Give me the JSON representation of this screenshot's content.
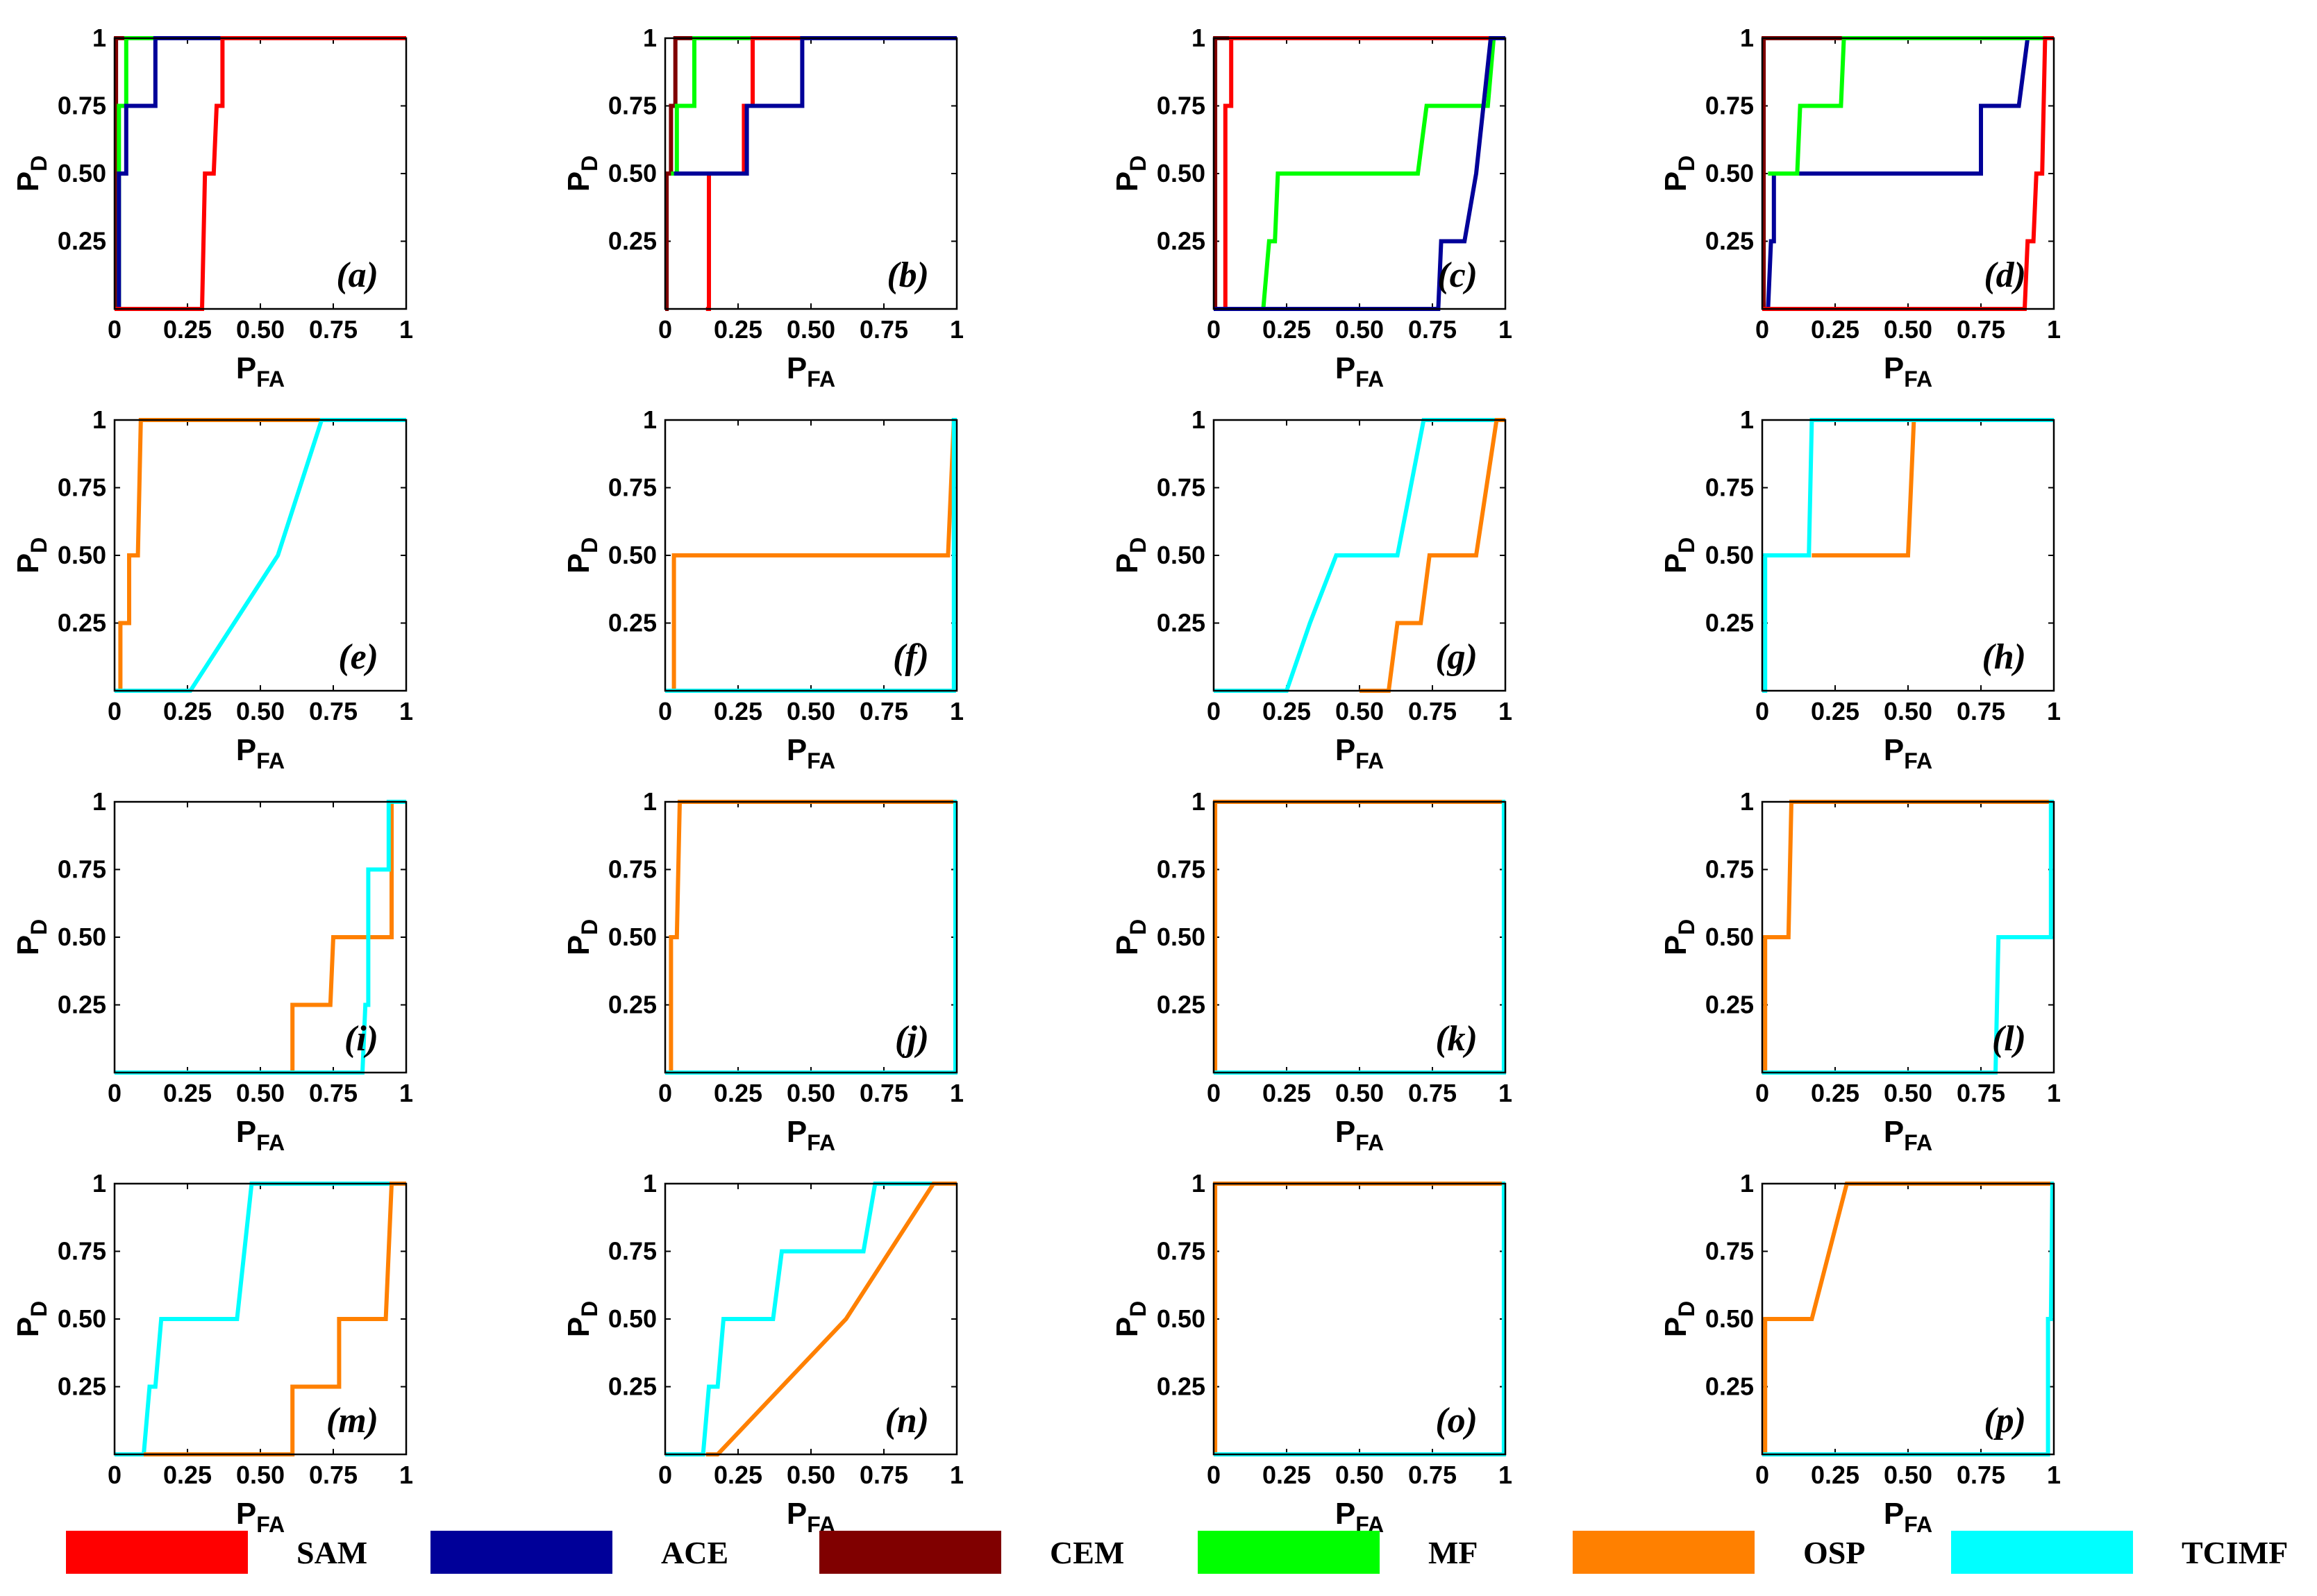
{
  "figure": {
    "x_label": "P",
    "x_label_sub": "FA",
    "y_label": "P",
    "y_label_sub": "D",
    "x_ticks": [
      "0",
      "0.25",
      "0.50",
      "0.75",
      "1"
    ],
    "y_ticks": [
      "0.25",
      "0.50",
      "0.75",
      "1"
    ]
  },
  "legend": [
    {
      "name": "SAM",
      "color": "#ff0000"
    },
    {
      "name": "ACE",
      "color": "#000099"
    },
    {
      "name": "CEM",
      "color": "#800000"
    },
    {
      "name": "MF",
      "color": "#00ff00"
    },
    {
      "name": "OSP",
      "color": "#ff8000"
    },
    {
      "name": "TCIMF",
      "color": "#00ffff"
    }
  ],
  "chart_data": [
    {
      "type": "line",
      "panel": "(a)",
      "xlim": [
        0,
        1
      ],
      "ylim": [
        0,
        1
      ],
      "series": [
        {
          "name": "CEM",
          "color": "#800000",
          "x": [
            0,
            0.005,
            0.005,
            1
          ],
          "y": [
            0,
            0,
            1,
            1
          ]
        },
        {
          "name": "MF",
          "color": "#00ff00",
          "x": [
            0.01,
            0.015,
            0.015,
            0.04,
            0.04,
            1
          ],
          "y": [
            0,
            0,
            0.75,
            0.75,
            1,
            1
          ]
        },
        {
          "name": "ACE",
          "color": "#000099",
          "x": [
            0,
            0.015,
            0.015,
            0.04,
            0.04,
            0.14,
            0.14,
            1
          ],
          "y": [
            0,
            0,
            0.5,
            0.5,
            0.75,
            0.75,
            1,
            1
          ]
        },
        {
          "name": "SAM",
          "color": "#ff0000",
          "x": [
            0,
            0.3,
            0.31,
            0.34,
            0.35,
            0.37,
            0.37,
            1
          ],
          "y": [
            0,
            0,
            0.5,
            0.5,
            0.75,
            0.75,
            1,
            1
          ]
        }
      ]
    },
    {
      "type": "line",
      "panel": "(b)",
      "xlim": [
        0,
        1
      ],
      "ylim": [
        0,
        1
      ],
      "series": [
        {
          "name": "CEM",
          "color": "#800000",
          "x": [
            0,
            0.005,
            0.005,
            0.02,
            0.02,
            0.035,
            0.035,
            1
          ],
          "y": [
            0,
            0,
            0.5,
            0.5,
            0.75,
            0.75,
            1,
            1
          ]
        },
        {
          "name": "MF",
          "color": "#00ff00",
          "x": [
            0.02,
            0.04,
            0.04,
            0.07,
            0.07,
            0.1,
            0.1,
            1
          ],
          "y": [
            0.5,
            0.5,
            0.75,
            0.75,
            0.75,
            0.75,
            1,
            1
          ]
        },
        {
          "name": "SAM",
          "color": "#ff0000",
          "x": [
            0.14,
            0.15,
            0.15,
            0.27,
            0.27,
            0.3,
            0.3,
            1
          ],
          "y": [
            0,
            0,
            0.5,
            0.5,
            0.75,
            0.75,
            1,
            1
          ]
        },
        {
          "name": "ACE",
          "color": "#000099",
          "x": [
            0.03,
            0.28,
            0.28,
            0.47,
            0.47,
            1
          ],
          "y": [
            0.5,
            0.5,
            0.75,
            0.75,
            1,
            1
          ]
        }
      ]
    },
    {
      "type": "line",
      "panel": "(c)",
      "xlim": [
        0,
        1
      ],
      "ylim": [
        0,
        1
      ],
      "series": [
        {
          "name": "CEM",
          "color": "#800000",
          "x": [
            0,
            0.005,
            0.005,
            1
          ],
          "y": [
            0,
            0,
            1,
            1
          ]
        },
        {
          "name": "SAM",
          "color": "#ff0000",
          "x": [
            0,
            0.04,
            0.04,
            0.05,
            0.06,
            0.06,
            1
          ],
          "y": [
            0,
            0,
            0.75,
            0.75,
            0.75,
            1,
            1
          ]
        },
        {
          "name": "MF",
          "color": "#00ff00",
          "x": [
            0,
            0.17,
            0.19,
            0.21,
            0.22,
            0.24,
            0.7,
            0.73,
            0.94,
            0.96
          ],
          "y": [
            0,
            0,
            0.25,
            0.25,
            0.5,
            0.5,
            0.5,
            0.75,
            0.75,
            1
          ]
        },
        {
          "name": "ACE",
          "color": "#000099",
          "x": [
            0,
            0.77,
            0.78,
            0.85,
            0.86,
            0.9,
            0.95,
            1
          ],
          "y": [
            0,
            0,
            0.25,
            0.25,
            0.25,
            0.5,
            1,
            1
          ]
        }
      ]
    },
    {
      "type": "line",
      "panel": "(d)",
      "xlim": [
        0,
        1
      ],
      "ylim": [
        0,
        1
      ],
      "series": [
        {
          "name": "CEM",
          "color": "#800000",
          "x": [
            0,
            0.005,
            0.005,
            1
          ],
          "y": [
            0,
            0,
            1,
            1
          ]
        },
        {
          "name": "ACE",
          "color": "#000099",
          "x": [
            0,
            0.02,
            0.03,
            0.04,
            0.04,
            0.75,
            0.75,
            0.88,
            0.91,
            1
          ],
          "y": [
            0,
            0,
            0.25,
            0.25,
            0.5,
            0.5,
            0.75,
            0.75,
            1,
            1
          ]
        },
        {
          "name": "MF",
          "color": "#00ff00",
          "x": [
            0.02,
            0.03,
            0.03,
            0.12,
            0.13,
            0.27,
            0.28,
            1
          ],
          "y": [
            0.5,
            0.5,
            0.5,
            0.5,
            0.75,
            0.75,
            1,
            1
          ]
        },
        {
          "name": "SAM",
          "color": "#ff0000",
          "x": [
            0,
            0.9,
            0.91,
            0.93,
            0.94,
            0.96,
            0.97,
            1
          ],
          "y": [
            0,
            0,
            0.25,
            0.25,
            0.5,
            0.5,
            1,
            1
          ]
        }
      ]
    },
    {
      "type": "line",
      "panel": "(e)",
      "xlim": [
        0,
        1
      ],
      "ylim": [
        0,
        1
      ],
      "series": [
        {
          "name": "OSP",
          "color": "#ff8000",
          "x": [
            0.01,
            0.02,
            0.02,
            0.05,
            0.05,
            0.08,
            0.09,
            1
          ],
          "y": [
            0,
            0,
            0.25,
            0.25,
            0.5,
            0.5,
            1,
            1
          ]
        },
        {
          "name": "TCIMF",
          "color": "#00ffff",
          "x": [
            0,
            0.26,
            0.56,
            0.71,
            1
          ],
          "y": [
            0,
            0,
            0.5,
            1,
            1
          ]
        }
      ]
    },
    {
      "type": "line",
      "panel": "(f)",
      "xlim": [
        0,
        1
      ],
      "ylim": [
        0,
        1
      ],
      "series": [
        {
          "name": "OSP",
          "color": "#ff8000",
          "x": [
            0.02,
            0.03,
            0.03,
            0.97,
            0.98,
            0.98,
            0.99,
            1
          ],
          "y": [
            0,
            0,
            0.5,
            0.5,
            0.75,
            0.75,
            1,
            1
          ]
        },
        {
          "name": "TCIMF",
          "color": "#00ffff",
          "x": [
            0,
            0.99,
            0.99,
            1
          ],
          "y": [
            0,
            0,
            1,
            1
          ]
        }
      ]
    },
    {
      "type": "line",
      "panel": "(g)",
      "xlim": [
        0,
        1
      ],
      "ylim": [
        0,
        1
      ],
      "series": [
        {
          "name": "TCIMF",
          "color": "#00ffff",
          "x": [
            0,
            0.25,
            0.33,
            0.42,
            0.63,
            0.72,
            1
          ],
          "y": [
            0,
            0,
            0.25,
            0.5,
            0.5,
            1,
            1
          ]
        },
        {
          "name": "OSP",
          "color": "#ff8000",
          "x": [
            0.5,
            0.6,
            0.63,
            0.71,
            0.74,
            0.9,
            0.97,
            1
          ],
          "y": [
            0,
            0,
            0.25,
            0.25,
            0.5,
            0.5,
            1,
            1
          ]
        }
      ]
    },
    {
      "type": "line",
      "panel": "(h)",
      "xlim": [
        0,
        1
      ],
      "ylim": [
        0,
        1
      ],
      "series": [
        {
          "name": "OSP",
          "color": "#ff8000",
          "x": [
            0.17,
            0.5,
            0.52,
            1
          ],
          "y": [
            0.5,
            0.5,
            1,
            1
          ]
        },
        {
          "name": "TCIMF",
          "color": "#00ffff",
          "x": [
            0,
            0.01,
            0.01,
            0.16,
            0.17,
            1
          ],
          "y": [
            0,
            0,
            0.5,
            0.5,
            1,
            1
          ]
        }
      ]
    },
    {
      "type": "line",
      "panel": "(i)",
      "xlim": [
        0,
        1
      ],
      "ylim": [
        0,
        1
      ],
      "series": [
        {
          "name": "OSP",
          "color": "#ff8000",
          "x": [
            0.6,
            0.61,
            0.61,
            0.74,
            0.75,
            0.95,
            0.95,
            1
          ],
          "y": [
            0,
            0,
            0.25,
            0.25,
            0.5,
            0.5,
            1,
            1
          ]
        },
        {
          "name": "TCIMF",
          "color": "#00ffff",
          "x": [
            0,
            0.85,
            0.86,
            0.87,
            0.87,
            0.94,
            0.94,
            1
          ],
          "y": [
            0,
            0,
            0.25,
            0.25,
            0.75,
            0.75,
            1,
            1
          ]
        }
      ]
    },
    {
      "type": "line",
      "panel": "(j)",
      "xlim": [
        0,
        1
      ],
      "ylim": [
        0,
        1
      ],
      "series": [
        {
          "name": "OSP",
          "color": "#ff8000",
          "x": [
            0.01,
            0.02,
            0.02,
            0.04,
            0.05,
            1
          ],
          "y": [
            0,
            0,
            0.5,
            0.5,
            1,
            1
          ]
        },
        {
          "name": "TCIMF",
          "color": "#00ffff",
          "x": [
            0,
            0.995,
            0.995,
            1
          ],
          "y": [
            0,
            0,
            1,
            1
          ]
        }
      ]
    },
    {
      "type": "line",
      "panel": "(k)",
      "xlim": [
        0,
        1
      ],
      "ylim": [
        0,
        1
      ],
      "series": [
        {
          "name": "OSP",
          "color": "#ff8000",
          "x": [
            0,
            0.005,
            0.005,
            1
          ],
          "y": [
            0,
            0,
            1,
            1
          ]
        },
        {
          "name": "TCIMF",
          "color": "#00ffff",
          "x": [
            0,
            0.995,
            0.995,
            1
          ],
          "y": [
            0,
            0,
            1,
            1
          ]
        }
      ]
    },
    {
      "type": "line",
      "panel": "(l)",
      "xlim": [
        0,
        1
      ],
      "ylim": [
        0,
        1
      ],
      "series": [
        {
          "name": "OSP",
          "color": "#ff8000",
          "x": [
            0,
            0.01,
            0.01,
            0.09,
            0.1,
            1
          ],
          "y": [
            0,
            0,
            0.5,
            0.5,
            1,
            1
          ]
        },
        {
          "name": "TCIMF",
          "color": "#00ffff",
          "x": [
            0,
            0.8,
            0.81,
            0.99,
            0.99,
            1
          ],
          "y": [
            0,
            0,
            0.5,
            0.5,
            1,
            1
          ]
        }
      ]
    },
    {
      "type": "line",
      "panel": "(m)",
      "xlim": [
        0,
        1
      ],
      "ylim": [
        0,
        1
      ],
      "series": [
        {
          "name": "TCIMF",
          "color": "#00ffff",
          "x": [
            0,
            0.1,
            0.12,
            0.14,
            0.16,
            0.42,
            0.47,
            1
          ],
          "y": [
            0,
            0,
            0.25,
            0.25,
            0.5,
            0.5,
            1,
            1
          ]
        },
        {
          "name": "OSP",
          "color": "#ff8000",
          "x": [
            0.1,
            0.61,
            0.61,
            0.77,
            0.77,
            0.93,
            0.94,
            0.95,
            1
          ],
          "y": [
            0,
            0,
            0.25,
            0.25,
            0.5,
            0.5,
            0.75,
            1,
            1
          ]
        }
      ]
    },
    {
      "type": "line",
      "panel": "(n)",
      "xlim": [
        0,
        1
      ],
      "ylim": [
        0,
        1
      ],
      "series": [
        {
          "name": "TCIMF",
          "color": "#00ffff",
          "x": [
            0,
            0.13,
            0.15,
            0.18,
            0.2,
            0.37,
            0.4,
            0.68,
            0.72,
            1
          ],
          "y": [
            0,
            0,
            0.25,
            0.25,
            0.5,
            0.5,
            0.75,
            0.75,
            1,
            1
          ]
        },
        {
          "name": "OSP",
          "color": "#ff8000",
          "x": [
            0.14,
            0.18,
            0.62,
            0.92,
            1
          ],
          "y": [
            0,
            0,
            0.5,
            1,
            1
          ]
        }
      ]
    },
    {
      "type": "line",
      "panel": "(o)",
      "xlim": [
        0,
        1
      ],
      "ylim": [
        0,
        1
      ],
      "series": [
        {
          "name": "OSP",
          "color": "#ff8000",
          "x": [
            0,
            0.005,
            0.005,
            1
          ],
          "y": [
            0,
            0,
            1,
            1
          ]
        },
        {
          "name": "TCIMF",
          "color": "#00ffff",
          "x": [
            0,
            0.995,
            0.995,
            1
          ],
          "y": [
            0,
            0,
            1,
            1
          ]
        }
      ]
    },
    {
      "type": "line",
      "panel": "(p)",
      "xlim": [
        0,
        1
      ],
      "ylim": [
        0,
        1
      ],
      "series": [
        {
          "name": "OSP",
          "color": "#ff8000",
          "x": [
            0,
            0.01,
            0.01,
            0.17,
            0.29,
            1
          ],
          "y": [
            0,
            0,
            0.5,
            0.5,
            1,
            1
          ]
        },
        {
          "name": "TCIMF",
          "color": "#00ffff",
          "x": [
            0,
            0.98,
            0.98,
            0.99,
            0.995,
            1
          ],
          "y": [
            0,
            0,
            0.5,
            0.5,
            1,
            1
          ]
        }
      ]
    }
  ]
}
